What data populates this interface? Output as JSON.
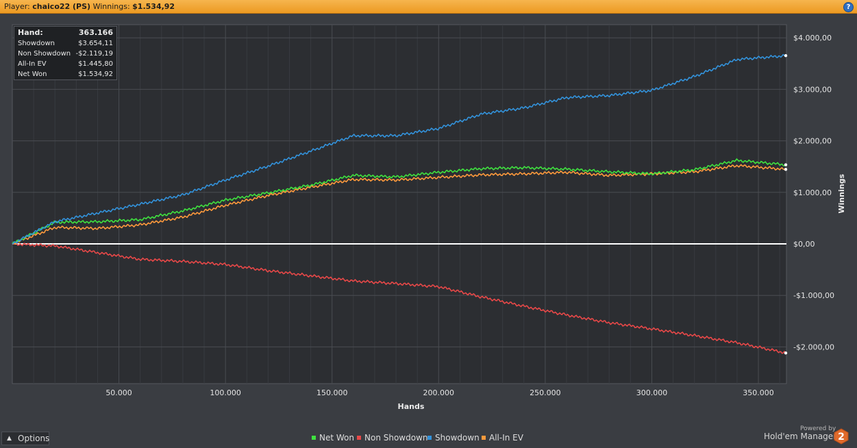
{
  "header": {
    "player_label": "Player:",
    "player_name": "chaico22 (PS)",
    "winnings_label": "Winnings:",
    "winnings_value": "$1.534,92",
    "help_icon": "help-icon"
  },
  "stats": [
    {
      "label": "Hand:",
      "value": "363.166"
    },
    {
      "label": "Showdown",
      "value": "$3.654,11"
    },
    {
      "label": "Non Showdown",
      "value": "-$2.119,19"
    },
    {
      "label": "All-In EV",
      "value": "$1.445,80"
    },
    {
      "label": "Net Won",
      "value": "$1.534,92"
    }
  ],
  "footer": {
    "options_label": "Options",
    "brand_powered": "Powered by",
    "brand_name": "Hold'em Manager",
    "brand_logo_text": "2"
  },
  "colors": {
    "net_won": "#3fe23f",
    "non_showdown": "#e84848",
    "showdown": "#3393dc",
    "all_in_ev": "#ff9a3c",
    "plot_bg": "#2c2e32",
    "grid": "#4a4d52",
    "zero_line": "#ffffff"
  },
  "chart_data": {
    "type": "line",
    "xlabel": "Hands",
    "ylabel": "Winnings",
    "xlim": [
      0,
      363166
    ],
    "ylim": [
      -2700,
      4400
    ],
    "x_ticks": [
      50000,
      100000,
      150000,
      200000,
      250000,
      300000,
      350000
    ],
    "x_tick_labels": [
      "50.000",
      "100.000",
      "150.000",
      "200.000",
      "250.000",
      "300.000",
      "350.000"
    ],
    "y_ticks": [
      4000,
      3000,
      2000,
      1000,
      0,
      -1000,
      -2000
    ],
    "y_tick_labels": [
      "$4.000,00",
      "$3.000,00",
      "$2.000,00",
      "$1.000,00",
      "$0,00",
      "-$1.000,00",
      "-$2.000,00"
    ],
    "grid": true,
    "legend_position": "bottom-center",
    "x": [
      0,
      20000,
      40000,
      60000,
      80000,
      100000,
      120000,
      140000,
      160000,
      180000,
      200000,
      220000,
      240000,
      260000,
      280000,
      300000,
      320000,
      340000,
      363166
    ],
    "series": [
      {
        "name": "Net Won",
        "values": [
          0,
          420,
          430,
          470,
          640,
          850,
          990,
          1140,
          1330,
          1300,
          1390,
          1460,
          1480,
          1450,
          1400,
          1360,
          1440,
          1620,
          1535
        ]
      },
      {
        "name": "Non Showdown",
        "values": [
          0,
          -40,
          -170,
          -300,
          -340,
          -400,
          -520,
          -620,
          -720,
          -770,
          -830,
          -1030,
          -1210,
          -1380,
          -1530,
          -1650,
          -1780,
          -1920,
          -2119
        ]
      },
      {
        "name": "Showdown",
        "values": [
          0,
          430,
          600,
          770,
          950,
          1240,
          1510,
          1800,
          2100,
          2100,
          2240,
          2520,
          2640,
          2840,
          2880,
          2980,
          3250,
          3580,
          3654
        ]
      },
      {
        "name": "All-In EV",
        "values": [
          0,
          320,
          300,
          370,
          520,
          750,
          940,
          1100,
          1250,
          1240,
          1290,
          1340,
          1360,
          1390,
          1330,
          1360,
          1400,
          1520,
          1446
        ]
      }
    ]
  }
}
